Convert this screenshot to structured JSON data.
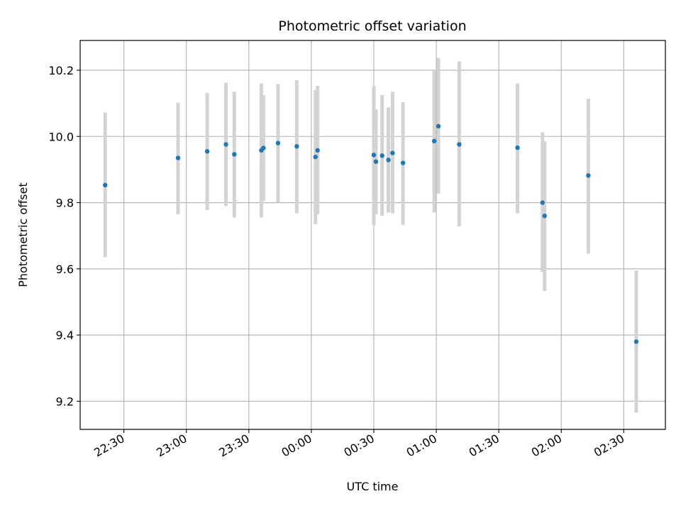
{
  "chart_data": {
    "type": "scatter",
    "title": "Photometric offset variation",
    "xlabel": "UTC time",
    "ylabel": "Photometric offset",
    "x_axis_kind": "time",
    "xlim": [
      "22:09",
      "02:50"
    ],
    "ylim": [
      9.115,
      10.29
    ],
    "xticks": [
      "22:30",
      "23:00",
      "23:30",
      "00:00",
      "00:30",
      "01:00",
      "01:30",
      "02:00",
      "02:30"
    ],
    "yticks": [
      "9.2",
      "9.4",
      "9.6",
      "9.8",
      "10.0",
      "10.2"
    ],
    "grid": true,
    "marker_color": "#1f77b4",
    "errorbar_color": "#d3d3d3",
    "points": [
      {
        "x": "22:21",
        "y": 9.853,
        "ylo": 9.635,
        "yhi": 10.072
      },
      {
        "x": "22:56",
        "y": 9.935,
        "ylo": 9.765,
        "yhi": 10.102
      },
      {
        "x": "23:10",
        "y": 9.955,
        "ylo": 9.778,
        "yhi": 10.132
      },
      {
        "x": "23:19",
        "y": 9.976,
        "ylo": 9.79,
        "yhi": 10.162
      },
      {
        "x": "23:23",
        "y": 9.946,
        "ylo": 9.755,
        "yhi": 10.135
      },
      {
        "x": "23:36",
        "y": 9.958,
        "ylo": 9.755,
        "yhi": 10.16
      },
      {
        "x": "23:37",
        "y": 9.965,
        "ylo": 9.805,
        "yhi": 10.125
      },
      {
        "x": "23:44",
        "y": 9.98,
        "ylo": 9.8,
        "yhi": 10.158
      },
      {
        "x": "23:53",
        "y": 9.97,
        "ylo": 9.768,
        "yhi": 10.17
      },
      {
        "x": "00:02",
        "y": 9.938,
        "ylo": 9.735,
        "yhi": 10.14
      },
      {
        "x": "00:03",
        "y": 9.958,
        "ylo": 9.765,
        "yhi": 10.153
      },
      {
        "x": "00:30",
        "y": 9.944,
        "ylo": 9.732,
        "yhi": 10.153
      },
      {
        "x": "00:31",
        "y": 9.924,
        "ylo": 9.765,
        "yhi": 10.082
      },
      {
        "x": "00:34",
        "y": 9.942,
        "ylo": 9.76,
        "yhi": 10.125
      },
      {
        "x": "00:37",
        "y": 9.929,
        "ylo": 9.77,
        "yhi": 10.088
      },
      {
        "x": "00:39",
        "y": 9.95,
        "ylo": 9.768,
        "yhi": 10.135
      },
      {
        "x": "00:44",
        "y": 9.92,
        "ylo": 9.733,
        "yhi": 10.104
      },
      {
        "x": "00:59",
        "y": 9.986,
        "ylo": 9.77,
        "yhi": 10.198
      },
      {
        "x": "01:01",
        "y": 10.031,
        "ylo": 9.827,
        "yhi": 10.237
      },
      {
        "x": "01:11",
        "y": 9.976,
        "ylo": 9.728,
        "yhi": 10.227
      },
      {
        "x": "01:39",
        "y": 9.966,
        "ylo": 9.768,
        "yhi": 10.16
      },
      {
        "x": "01:51",
        "y": 9.8,
        "ylo": 9.59,
        "yhi": 10.012
      },
      {
        "x": "01:52",
        "y": 9.76,
        "ylo": 9.533,
        "yhi": 9.985
      },
      {
        "x": "02:13",
        "y": 9.882,
        "ylo": 9.646,
        "yhi": 10.114
      },
      {
        "x": "02:36",
        "y": 9.38,
        "ylo": 9.166,
        "yhi": 9.595
      }
    ]
  }
}
